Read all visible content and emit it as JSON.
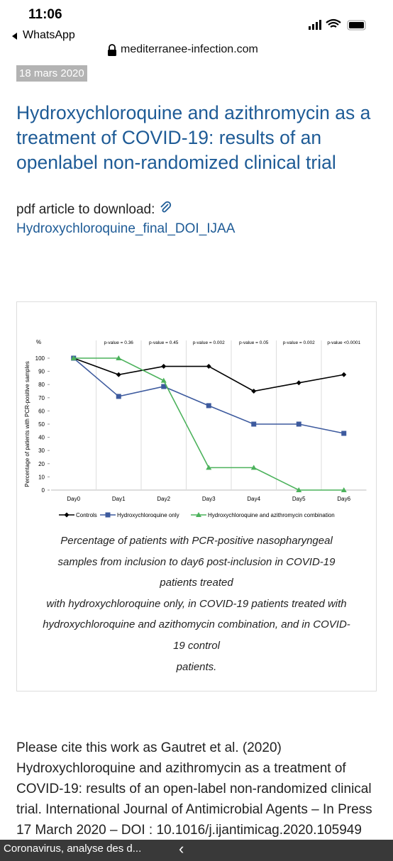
{
  "status_bar": {
    "time": "11:06",
    "back_app": "WhatsApp"
  },
  "browser": {
    "url": "mediterranee-infection.com"
  },
  "article": {
    "date": "18 mars 2020",
    "title": "Hydroxychloroquine and azithromycin as a treatment of COVID-19: results of an openlabel non-randomized clinical trial",
    "download_label": "pdf article to download:",
    "download_link": "Hydroxychloroquine_final_DOI_IJAA",
    "caption_lines": [
      "Percentage of patients with PCR-positive nasopharyngeal",
      "samples from inclusion to day6 post-inclusion in COVID-19",
      "patients treated",
      "with hydroxychloroquine only, in COVID-19 patients treated with",
      "hydroxychloroquine and azithomycin combination, and in COVID-",
      "19 control",
      "patients."
    ],
    "citation": "Please cite this work as Gautret et al. (2020) Hydroxychloroquine and azithromycin as a treatment of COVID-19: results of an open-label non-randomized clinical trial. International Journal of Antimicrobial Agents – In Press 17 March 2020 – DOI : 10.1016/j.ijantimicag.2020.105949"
  },
  "chart_data": {
    "type": "line",
    "y_label": "Percentage of patients with PCR-positive samples",
    "y_unit": "%",
    "categories": [
      "Day0",
      "Day1",
      "Day2",
      "Day3",
      "Day4",
      "Day5",
      "Day6"
    ],
    "annotations": [
      null,
      "p-value = 0.36",
      "p-value = 0.45",
      "p-value = 0.002",
      "p-value = 0.05",
      "p-value = 0.002",
      "p-value <0.0001"
    ],
    "series": [
      {
        "name": "Controls",
        "color": "#000000",
        "marker": "diamond",
        "values": [
          100,
          87.5,
          93.8,
          93.8,
          75,
          81.3,
          87.5
        ]
      },
      {
        "name": "Hydroxychloroquine only",
        "color": "#3d5a9e",
        "marker": "square",
        "values": [
          100,
          71,
          78.5,
          64,
          50,
          50,
          43
        ]
      },
      {
        "name": "Hydroxychloroquine and azithromycin combination",
        "color": "#4cb25c",
        "marker": "triangle",
        "values": [
          100,
          100,
          83,
          17,
          17,
          0,
          0
        ]
      }
    ],
    "ylim": [
      0,
      100
    ],
    "yticks": [
      0,
      10,
      20,
      30,
      40,
      50,
      60,
      70,
      80,
      90,
      100
    ],
    "grid": true
  },
  "bottom_bar": {
    "tab_title": "Coronavirus, analyse des d...",
    "back": "‹"
  }
}
